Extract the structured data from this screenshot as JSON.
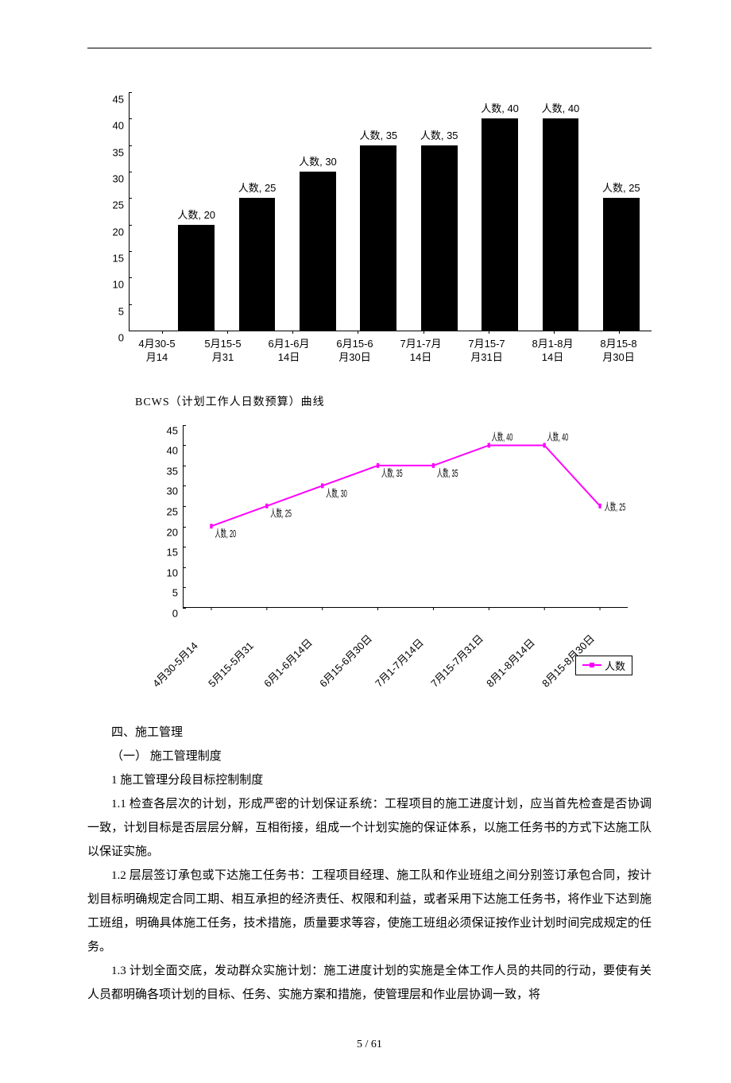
{
  "bar_chart": {
    "type": "bar",
    "categories": [
      "4月30-5月14",
      "5月15-5月31",
      "6月1-6月14日",
      "6月15-6月30日",
      "7月1-7月14日",
      "7月15-7月31日",
      "8月1-8月14日",
      "8月15-8月30日"
    ],
    "series_name": "人数",
    "values": [
      20,
      25,
      30,
      35,
      35,
      40,
      40,
      25
    ],
    "data_labels": [
      "人数, 20",
      "人数, 25",
      "人数, 30",
      "人数, 35",
      "人数, 35",
      "人数, 40",
      "人数, 40",
      "人数, 25"
    ],
    "ylim": [
      0,
      45
    ],
    "ytick_step": 5,
    "bar_color": "#000000",
    "bar_width_pct": 60,
    "label_fontsize": 13,
    "axis_color": "#000000",
    "background_color": "#ffffff"
  },
  "caption": "BCWS（计划工作人日数预算）曲线",
  "line_chart": {
    "type": "line",
    "categories": [
      "4月30-5月14",
      "5月15-5月31",
      "6月1-6月14日",
      "6月15-6月30日",
      "7月1-7月14日",
      "7月15-7月31日",
      "8月1-8月14日",
      "8月15-8月30日"
    ],
    "series_name": "人数",
    "values": [
      20,
      25,
      30,
      35,
      35,
      40,
      40,
      25
    ],
    "data_labels": [
      "人数, 20",
      "人数, 25",
      "人数, 30",
      "人数, 35",
      "人数, 35",
      "人数, 40",
      "人数, 40",
      "人数, 25"
    ],
    "ylim": [
      0,
      45
    ],
    "ytick_step": 5,
    "line_color": "#ff00ff",
    "marker_color": "#ff00ff",
    "marker_style": "square",
    "marker_size": 6,
    "line_width": 2,
    "label_fontsize": 13,
    "legend_label": "人数",
    "axis_color": "#000000",
    "background_color": "#ffffff"
  },
  "text": {
    "h1": "四、施工管理",
    "h2": "（一） 施工管理制度",
    "h3": "1 施工管理分段目标控制制度",
    "p1": "1.1 检查各层次的计划，形成严密的计划保证系统：工程项目的施工进度计划，应当首先检查是否协调一致，计划目标是否层层分解，互相衔接，组成一个计划实施的保证体系，以施工任务书的方式下达施工队以保证实施。",
    "p2": "1.2 层层签订承包或下达施工任务书：工程项目经理、施工队和作业班组之间分别签订承包合同，按计划目标明确规定合同工期、相互承担的经济责任、权限和利益，或者采用下达施工任务书，将作业下达到施工班组，明确具体施工任务，技术措施，质量要求等容，使施工班组必须保证按作业计划时间完成规定的任务。",
    "p3": "1.3 计划全面交底，发动群众实施计划：施工进度计划的实施是全体工作人员的共同的行动，要使有关人员都明确各项计划的目标、任务、实施方案和措施，使管理层和作业层协调一致，将"
  },
  "footer": "5 / 61"
}
